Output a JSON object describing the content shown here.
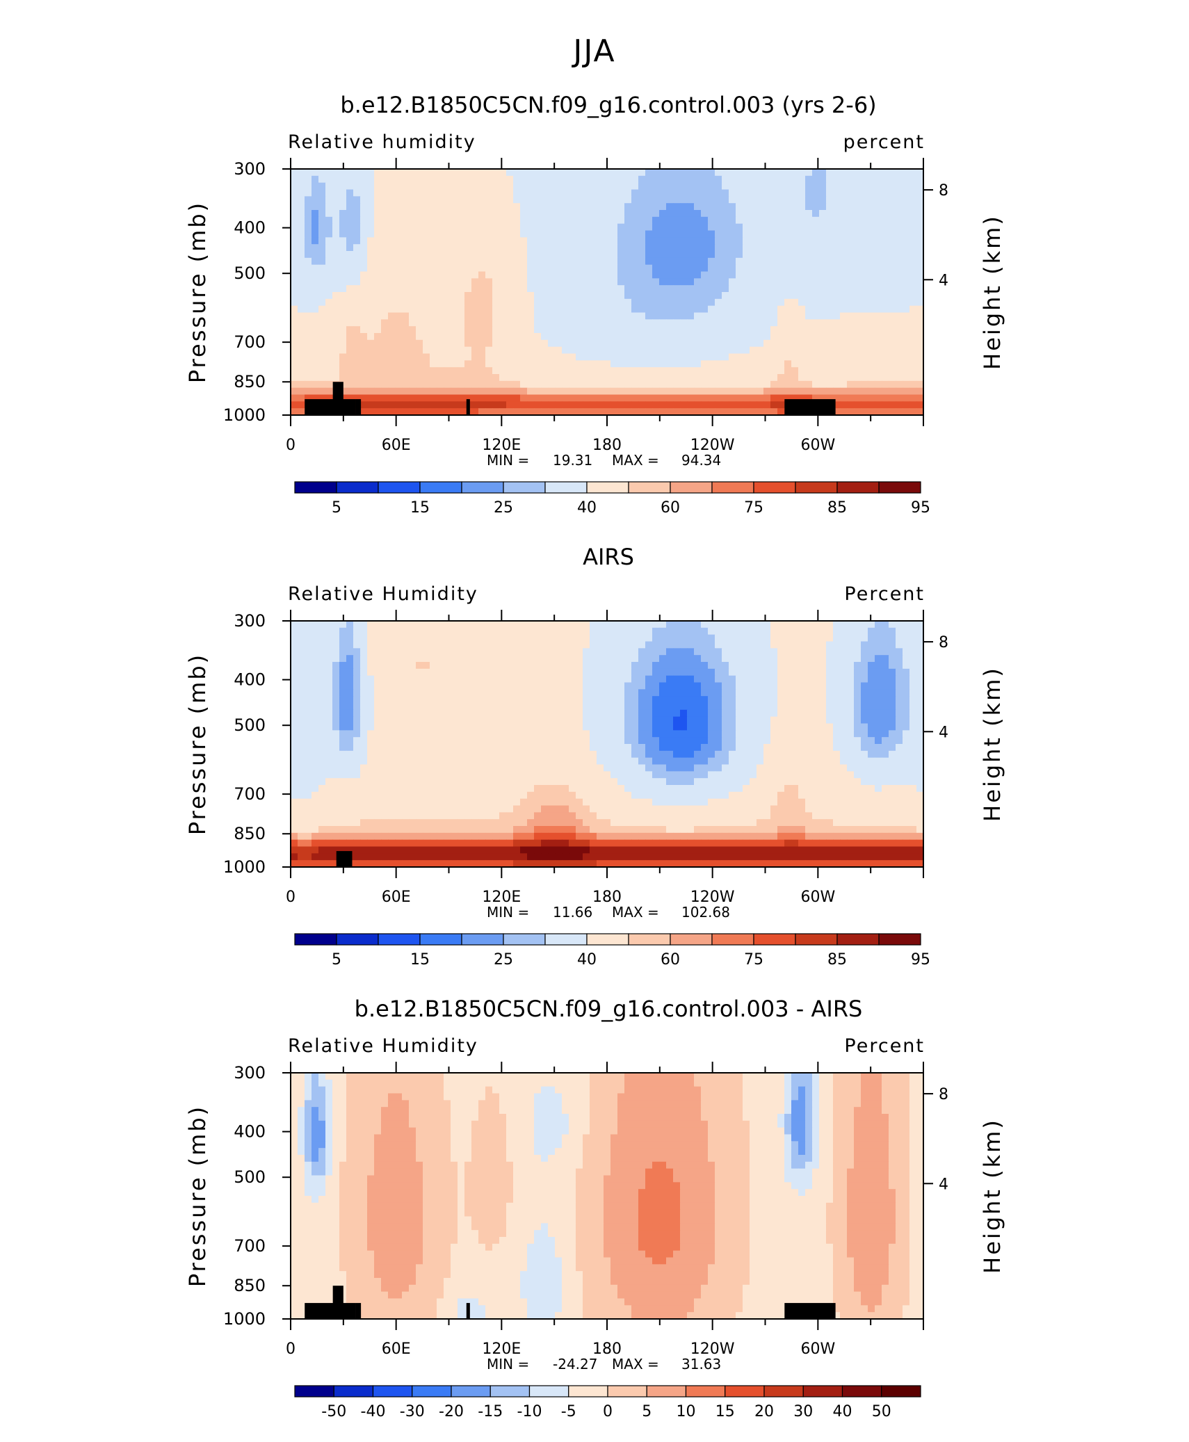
{
  "page_title": "JJA",
  "chart_data": [
    {
      "type": "heatmap",
      "title": "b.e12.B1850C5CN.f09_g16.control.003 (yrs 2-6)",
      "left_label": "Relative humidity",
      "right_label": "percent",
      "ylabel": "Pressure (mb)",
      "ylabel_right": "Height (km)",
      "y_ticks": [
        "300",
        "400",
        "500",
        "700",
        "850",
        "1000"
      ],
      "y_right_ticks": [
        "8",
        "4"
      ],
      "x_ticks": [
        "0",
        "60E",
        "120E",
        "180",
        "120W",
        "60W"
      ],
      "stats": {
        "min_label": "MIN =",
        "min": "19.31",
        "max_label": "MAX =",
        "max": "94.34"
      },
      "colorbar_labels": [
        "5",
        "15",
        "25",
        "40",
        "60",
        "75",
        "85",
        "95"
      ],
      "min_value": 19.31,
      "max_value": 94.34,
      "variant": "model"
    },
    {
      "type": "heatmap",
      "title": "AIRS",
      "left_label": "Relative Humidity",
      "right_label": "Percent",
      "ylabel": "Pressure (mb)",
      "ylabel_right": "Height (km)",
      "y_ticks": [
        "300",
        "400",
        "500",
        "700",
        "850",
        "1000"
      ],
      "y_right_ticks": [
        "8",
        "4"
      ],
      "x_ticks": [
        "0",
        "60E",
        "120E",
        "180",
        "120W",
        "60W"
      ],
      "stats": {
        "min_label": "MIN =",
        "min": "11.66",
        "max_label": "MAX =",
        "max": "102.68"
      },
      "colorbar_labels": [
        "5",
        "15",
        "25",
        "40",
        "60",
        "75",
        "85",
        "95"
      ],
      "min_value": 11.66,
      "max_value": 102.68,
      "variant": "obs"
    },
    {
      "type": "heatmap",
      "title": "b.e12.B1850C5CN.f09_g16.control.003 - AIRS",
      "left_label": "Relative Humidity",
      "right_label": "Percent",
      "ylabel": "Pressure (mb)",
      "ylabel_right": "Height (km)",
      "y_ticks": [
        "300",
        "400",
        "500",
        "700",
        "850",
        "1000"
      ],
      "y_right_ticks": [
        "8",
        "4"
      ],
      "x_ticks": [
        "0",
        "60E",
        "120E",
        "180",
        "120W",
        "60W"
      ],
      "stats": {
        "min_label": "MIN =",
        "min": "-24.27",
        "max_label": "MAX =",
        "max": "31.63"
      },
      "colorbar_labels": [
        "-50",
        "-40",
        "-30",
        "-20",
        "-15",
        "-10",
        "-5",
        "0",
        "5",
        "10",
        "15",
        "20",
        "30",
        "40",
        "50"
      ],
      "min_value": -24.27,
      "max_value": 31.63,
      "variant": "diff"
    }
  ],
  "colors": {
    "palette": [
      "#00008c",
      "#0a2ccc",
      "#1e55f0",
      "#3a7bf5",
      "#6b9cf2",
      "#a3c2f3",
      "#d8e7f8",
      "#fde6d2",
      "#fbcaae",
      "#f5a587",
      "#f07a55",
      "#e5502d",
      "#c73a1c",
      "#a31f12",
      "#7a0a0a"
    ],
    "diff_palette": [
      "#00008c",
      "#0a2ccc",
      "#1e55f0",
      "#3a7bf5",
      "#6b9cf2",
      "#a3c2f3",
      "#d8e7f8",
      "#fde6d2",
      "#fbcaae",
      "#f5a587",
      "#f07a55",
      "#e5502d",
      "#c73a1c",
      "#a31f12",
      "#7a0a0a",
      "#5c0000"
    ],
    "terrain": "#000000"
  }
}
